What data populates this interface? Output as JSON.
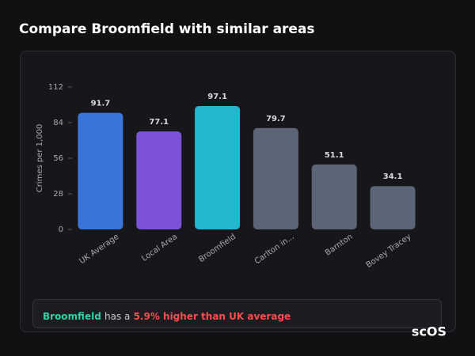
{
  "chart_data": {
    "type": "bar",
    "title": "Compare Broomfield with similar areas",
    "ylabel": "Crimes per 1,000",
    "categories": [
      "UK Average",
      "Local Area",
      "Broomfield",
      "Carlton in...",
      "Barnton",
      "Bovey Tracey"
    ],
    "values": [
      91.7,
      77.1,
      97.1,
      79.7,
      51.1,
      34.1
    ],
    "colors": [
      "#3a76da",
      "#7b52d8",
      "#21b7cf",
      "#5b6575",
      "#5b6575",
      "#5b6575"
    ],
    "ylim": [
      0,
      112
    ],
    "yticks": [
      0,
      28,
      56,
      84,
      112
    ],
    "grid": false,
    "note": {
      "highlight": "Broomfield",
      "text": "has a",
      "emphasis": "5.9% higher than UK average"
    },
    "logo": "scOS"
  }
}
